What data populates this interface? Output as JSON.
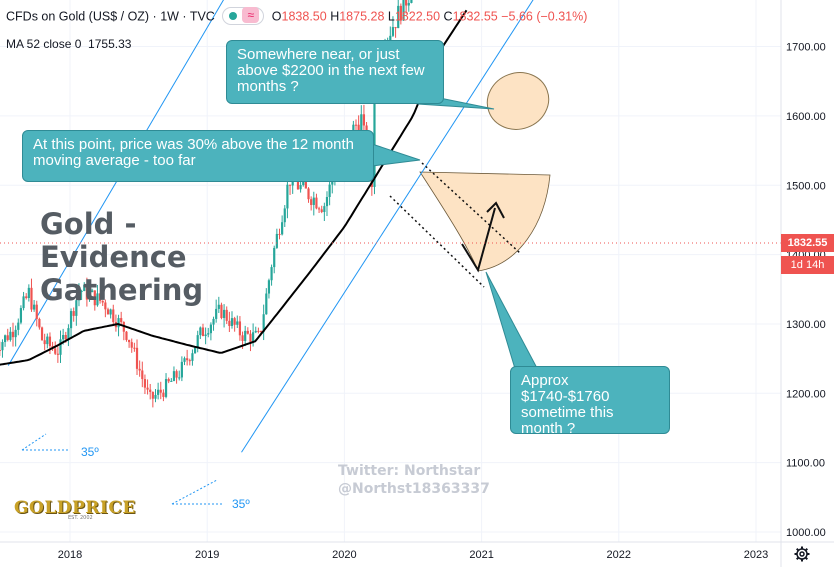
{
  "header": {
    "symbol": "CFDs on Gold (US$ / OZ) · 1W · TVC",
    "open_key": "O",
    "open_val": "1838.50",
    "high_key": "H",
    "high_val": "1875.28",
    "low_key": "L",
    "low_val": "1822.50",
    "close_key": "C",
    "close_val": "1832.55",
    "change": "−5.66 (−0.31%)"
  },
  "indicator": {
    "label": "MA 52 close 0",
    "value": "1755.33"
  },
  "price_tag": {
    "price": "1832.55",
    "countdown": "1d 14h"
  },
  "title": {
    "line1": "Gold -",
    "line2": "Evidence",
    "line3": "Gathering"
  },
  "callouts": {
    "top": "Somewhere near, or just above $2200 in the next few months ?",
    "left": "At this point, price was 30% above the 12 month moving average - too far",
    "bottom": "Approx $1740-$1760 sometime this month ?"
  },
  "angle_labels": [
    "35º",
    "35º"
  ],
  "watermark": {
    "line1": "Twitter: Northstar",
    "line2": "@Northst18363337"
  },
  "logo": {
    "text": "GOLDPRICE",
    "sub": "EST. 2002"
  },
  "colors": {
    "up": "#26a69a",
    "down": "#ef5350",
    "channel": "#2196f3",
    "ma": "#000000",
    "callout": "#4cb3bd",
    "cup": "#fde3c4"
  },
  "chart_data": {
    "type": "candlestick",
    "timeframe": "1W",
    "y_axis": {
      "ticks": [
        1000,
        1100,
        1200,
        1300,
        1400,
        1500,
        1600,
        1700,
        1800,
        1900,
        2000,
        2100,
        2200,
        2300,
        2400,
        2500
      ],
      "range": [
        960,
        2520
      ]
    },
    "x_axis": {
      "ticks": [
        "2018",
        "2019",
        "2020",
        "2021",
        "2022",
        "2023"
      ],
      "range": [
        2017.45,
        2023.5
      ]
    },
    "last_price": 1832.55,
    "price_anchors": [
      [
        2017.45,
        1265
      ],
      [
        2017.58,
        1290
      ],
      [
        2017.7,
        1345
      ],
      [
        2017.8,
        1275
      ],
      [
        2017.92,
        1260
      ],
      [
        2018.07,
        1350
      ],
      [
        2018.25,
        1330
      ],
      [
        2018.42,
        1285
      ],
      [
        2018.58,
        1190
      ],
      [
        2018.68,
        1205
      ],
      [
        2018.8,
        1230
      ],
      [
        2018.95,
        1285
      ],
      [
        2019.1,
        1320
      ],
      [
        2019.25,
        1285
      ],
      [
        2019.38,
        1280
      ],
      [
        2019.48,
        1400
      ],
      [
        2019.6,
        1510
      ],
      [
        2019.72,
        1490
      ],
      [
        2019.85,
        1470
      ],
      [
        2019.98,
        1550
      ],
      [
        2020.12,
        1600
      ],
      [
        2020.2,
        1500
      ],
      [
        2020.22,
        1680
      ],
      [
        2020.35,
        1730
      ],
      [
        2020.48,
        1780
      ],
      [
        2020.55,
        1980
      ],
      [
        2020.6,
        2050
      ],
      [
        2020.7,
        1900
      ],
      [
        2020.8,
        1900
      ],
      [
        2020.88,
        1850
      ],
      [
        2020.92,
        1790
      ],
      [
        2020.96,
        1840
      ],
      [
        2021.0,
        1840
      ]
    ],
    "ma_anchors": [
      [
        2017.45,
        1240
      ],
      [
        2017.7,
        1248
      ],
      [
        2017.9,
        1268
      ],
      [
        2018.1,
        1290
      ],
      [
        2018.35,
        1300
      ],
      [
        2018.6,
        1283
      ],
      [
        2018.85,
        1270
      ],
      [
        2019.1,
        1258
      ],
      [
        2019.35,
        1275
      ],
      [
        2019.5,
        1312
      ],
      [
        2019.75,
        1375
      ],
      [
        2020.0,
        1440
      ],
      [
        2020.25,
        1520
      ],
      [
        2020.5,
        1600
      ],
      [
        2020.7,
        1695
      ],
      [
        2020.9,
        1755.33
      ]
    ],
    "ma_period": 52,
    "channel_slope_per_year": 180,
    "channel": {
      "upper": [
        [
          2017.55,
          1240
        ],
        [
          2021.15,
          2450
        ]
      ],
      "lower": [
        [
          2019.25,
          1115
        ],
        [
          2022.85,
          2220
        ]
      ]
    }
  }
}
